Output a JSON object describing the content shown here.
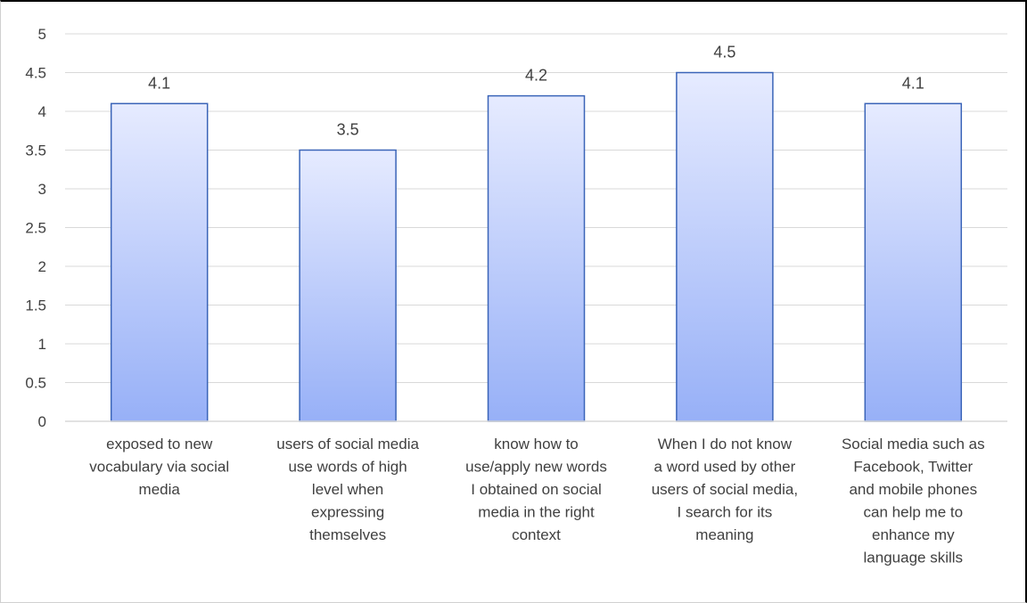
{
  "chart_data": {
    "type": "bar",
    "title": "",
    "xlabel": "",
    "ylabel": "",
    "ylim": [
      0,
      5
    ],
    "y_ticks": [
      0,
      0.5,
      1,
      1.5,
      2,
      2.5,
      3,
      3.5,
      4,
      4.5,
      5
    ],
    "y_tick_labels": [
      "0",
      "0.5",
      "1",
      "1.5",
      "2",
      "2.5",
      "3",
      "3.5",
      "4",
      "4.5",
      "5"
    ],
    "grid": true,
    "legend": "none",
    "colors": {
      "bar_top": "#e6ebff",
      "bar_bottom": "#97b0f7",
      "bar_border": "#3a64b8",
      "grid": "#d9d9d9",
      "text": "#404040"
    },
    "categories": [
      [
        "exposed to new",
        "vocabulary via social",
        "media"
      ],
      [
        "users of social media",
        "use words of high",
        "level when",
        "expressing",
        "themselves"
      ],
      [
        "know how to",
        "use/apply new words",
        "I obtained on social",
        "media in the right",
        "context"
      ],
      [
        "When I do not know",
        "a word used by other",
        "users of social media,",
        "I search for its",
        "meaning"
      ],
      [
        "Social media such as",
        "Facebook, Twitter",
        "and mobile phones",
        "can help me to",
        "enhance my",
        "language skills"
      ]
    ],
    "values": [
      4.1,
      3.5,
      4.2,
      4.5,
      4.1
    ],
    "value_labels": [
      "4.1",
      "3.5",
      "4.2",
      "4.5",
      "4.1"
    ]
  }
}
